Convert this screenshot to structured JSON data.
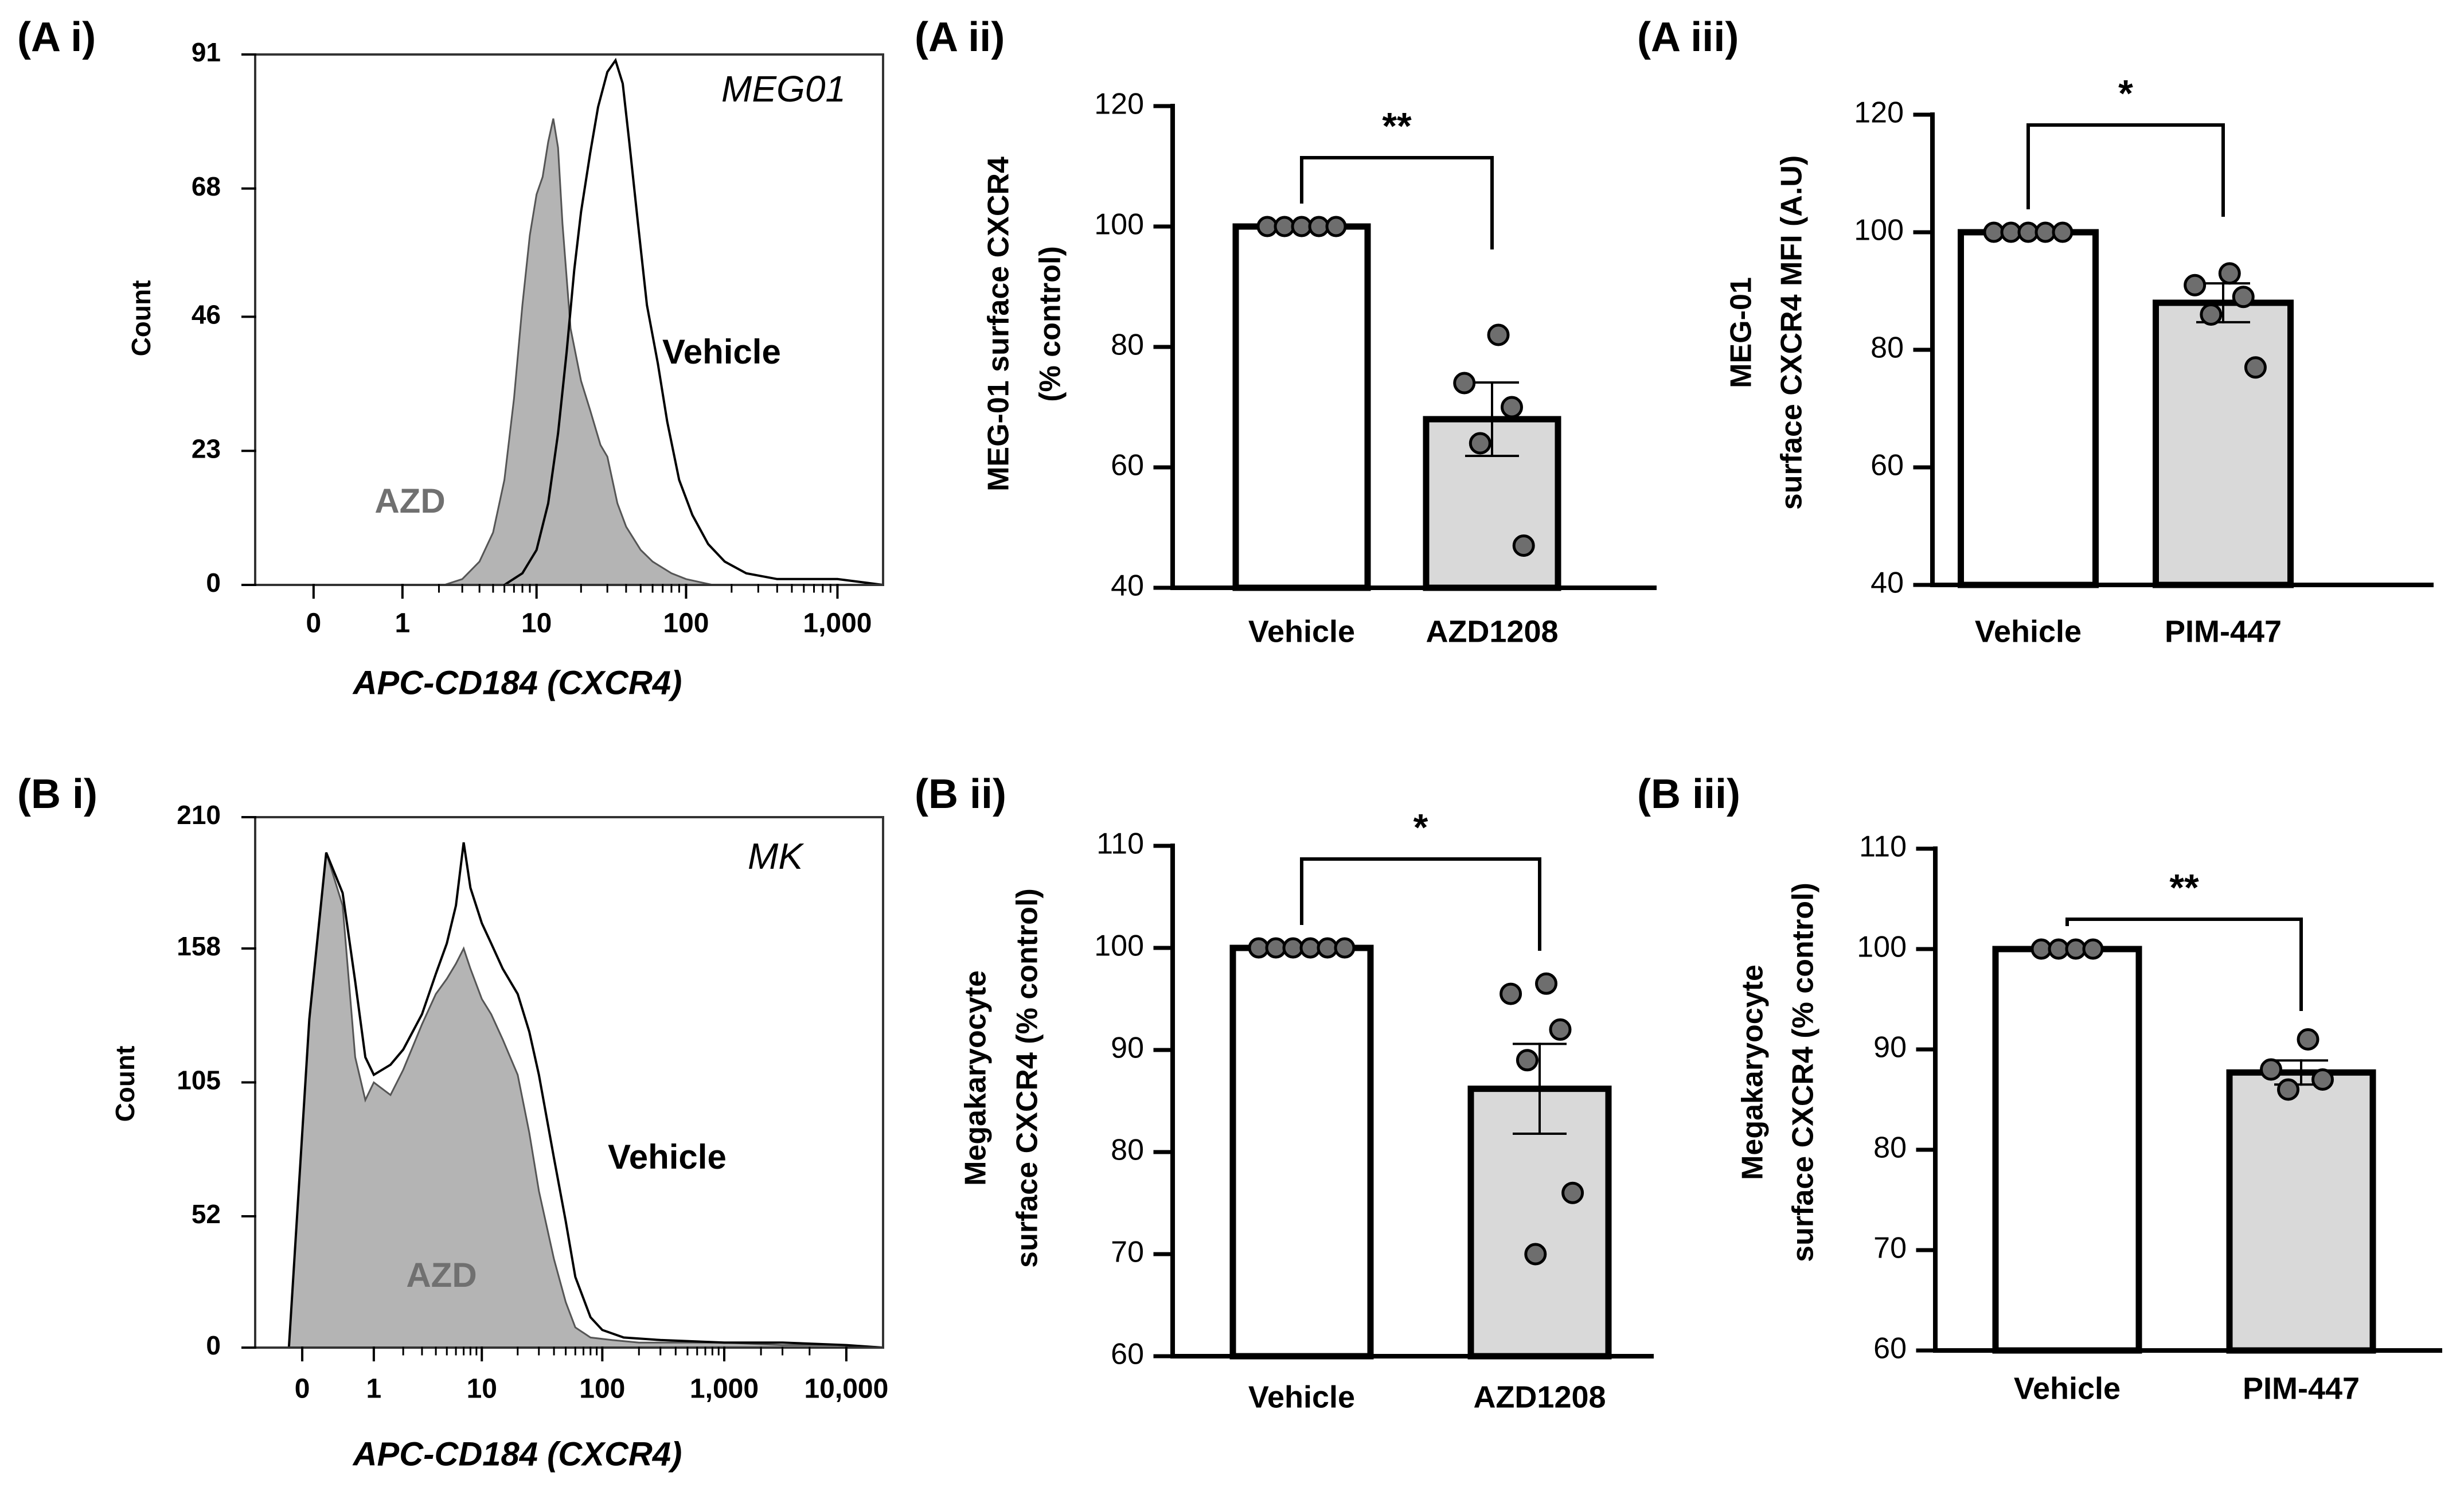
{
  "colors": {
    "ink": "#000000",
    "gray_fill": "#b4b4b4",
    "bar_gray": "#d9d9d9",
    "dot": "#6e6e6e",
    "azd_label": "#707070"
  },
  "chart_data": [
    {
      "id": "Ai",
      "panel_label": "(A i)",
      "type": "area",
      "subtype": "flow-histogram",
      "title": "MEG01",
      "xlabel": "APC-CD184  (CXCR4)",
      "ylabel": "Count",
      "ylim": [
        0,
        91
      ],
      "yticks": [
        {
          "v": 0,
          "label": "0"
        },
        {
          "v": 23,
          "label": "23"
        },
        {
          "v": 46,
          "label": "46"
        },
        {
          "v": 68,
          "label": "68"
        },
        {
          "v": 91,
          "label": "91"
        }
      ],
      "xticks": [
        {
          "v": 0,
          "label": "0"
        },
        {
          "v": 1,
          "label": "1"
        },
        {
          "v": 10,
          "label": "10"
        },
        {
          "v": 100,
          "label": "100"
        },
        {
          "v": 1000,
          "label": "1,000"
        }
      ],
      "xrange": [
        -0.5,
        2000
      ],
      "series": [
        {
          "name": "AZD",
          "label": "AZD",
          "style": "filled",
          "points": [
            [
              2.2,
              0
            ],
            [
              3,
              1
            ],
            [
              4,
              4
            ],
            [
              5,
              9
            ],
            [
              6,
              18
            ],
            [
              7,
              32
            ],
            [
              8,
              48
            ],
            [
              9,
              60
            ],
            [
              10,
              67
            ],
            [
              11,
              70
            ],
            [
              12,
              76
            ],
            [
              13,
              80
            ],
            [
              14,
              75
            ],
            [
              15,
              62
            ],
            [
              17,
              44
            ],
            [
              20,
              35
            ],
            [
              23,
              30
            ],
            [
              27,
              24
            ],
            [
              30,
              22
            ],
            [
              35,
              14
            ],
            [
              40,
              10
            ],
            [
              50,
              6
            ],
            [
              60,
              4
            ],
            [
              80,
              2
            ],
            [
              100,
              1
            ],
            [
              150,
              0
            ],
            [
              2000,
              0
            ]
          ]
        },
        {
          "name": "Vehicle",
          "label": "Vehicle",
          "style": "outline",
          "points": [
            [
              6,
              0
            ],
            [
              8,
              2
            ],
            [
              10,
              6
            ],
            [
              12,
              14
            ],
            [
              14,
              26
            ],
            [
              16,
              40
            ],
            [
              18,
              54
            ],
            [
              20,
              64
            ],
            [
              23,
              74
            ],
            [
              26,
              82
            ],
            [
              30,
              88
            ],
            [
              34,
              90
            ],
            [
              38,
              86
            ],
            [
              42,
              76
            ],
            [
              48,
              62
            ],
            [
              55,
              48
            ],
            [
              65,
              38
            ],
            [
              75,
              28
            ],
            [
              90,
              18
            ],
            [
              110,
              12
            ],
            [
              140,
              7
            ],
            [
              180,
              4
            ],
            [
              250,
              2
            ],
            [
              400,
              1
            ],
            [
              700,
              1
            ],
            [
              1000,
              1
            ],
            [
              2000,
              0
            ]
          ]
        }
      ]
    },
    {
      "id": "Aii",
      "panel_label": "(A ii)",
      "type": "bar",
      "ylabel_lines": [
        "MEG-01 surface CXCR4",
        "(% control)"
      ],
      "ylim": [
        40,
        120
      ],
      "yticks": [
        40,
        60,
        80,
        100,
        120
      ],
      "categories": [
        "Vehicle",
        "AZD1208"
      ],
      "values": [
        100,
        68
      ],
      "sem": [
        0,
        6.1
      ],
      "points": [
        [
          100,
          100,
          100,
          100,
          100
        ],
        [
          82,
          74,
          70,
          64,
          47
        ]
      ],
      "significance": "**"
    },
    {
      "id": "Aiii",
      "panel_label": "(A iii)",
      "type": "bar",
      "ylabel_lines": [
        "MEG-01",
        "surface CXCR4 MFI (A.U)"
      ],
      "ylim": [
        40,
        120
      ],
      "yticks": [
        40,
        60,
        80,
        100,
        120
      ],
      "categories": [
        "Vehicle",
        "PIM-447"
      ],
      "values": [
        100,
        88
      ],
      "sem": [
        0,
        3.3
      ],
      "points": [
        [
          100,
          100,
          100,
          100,
          100
        ],
        [
          93,
          91,
          89,
          86,
          77
        ]
      ],
      "significance": "*"
    },
    {
      "id": "Bi",
      "panel_label": "(B i)",
      "type": "area",
      "subtype": "flow-histogram",
      "title": "MK",
      "xlabel": "APC-CD184  (CXCR4)",
      "ylabel": "Count",
      "ylim": [
        0,
        210
      ],
      "yticks": [
        {
          "v": 0,
          "label": "0"
        },
        {
          "v": 52,
          "label": "52"
        },
        {
          "v": 105,
          "label": "105"
        },
        {
          "v": 158,
          "label": "158"
        },
        {
          "v": 210,
          "label": "210"
        }
      ],
      "xticks": [
        {
          "v": 0,
          "label": "0"
        },
        {
          "v": 1,
          "label": "1"
        },
        {
          "v": 10,
          "label": "10"
        },
        {
          "v": 100,
          "label": "100"
        },
        {
          "v": 1000,
          "label": "1,000"
        },
        {
          "v": 10000,
          "label": "10,000"
        }
      ],
      "xrange": [
        -0.5,
        20000
      ],
      "series": [
        {
          "name": "AZD",
          "label": "AZD",
          "style": "filled",
          "points": [
            [
              -0.1,
              0
            ],
            [
              0.05,
              130
            ],
            [
              0.2,
              196
            ],
            [
              0.4,
              175
            ],
            [
              0.6,
              115
            ],
            [
              0.8,
              98
            ],
            [
              1,
              105
            ],
            [
              1.5,
              100
            ],
            [
              2,
              110
            ],
            [
              3,
              128
            ],
            [
              4,
              140
            ],
            [
              5,
              146
            ],
            [
              6,
              152
            ],
            [
              7,
              158
            ],
            [
              8,
              150
            ],
            [
              10,
              138
            ],
            [
              12,
              132
            ],
            [
              15,
              122
            ],
            [
              20,
              108
            ],
            [
              25,
              85
            ],
            [
              30,
              62
            ],
            [
              40,
              35
            ],
            [
              50,
              18
            ],
            [
              60,
              8
            ],
            [
              80,
              4
            ],
            [
              120,
              3
            ],
            [
              200,
              2
            ],
            [
              400,
              2
            ],
            [
              1000,
              2
            ],
            [
              3000,
              1
            ],
            [
              10000,
              1
            ],
            [
              20000,
              0
            ]
          ]
        },
        {
          "name": "Vehicle",
          "label": "Vehicle",
          "style": "outline",
          "points": [
            [
              -0.1,
              0
            ],
            [
              0.05,
              130
            ],
            [
              0.2,
              196
            ],
            [
              0.4,
              180
            ],
            [
              0.6,
              145
            ],
            [
              0.8,
              115
            ],
            [
              1,
              108
            ],
            [
              1.5,
              112
            ],
            [
              2,
              118
            ],
            [
              3,
              132
            ],
            [
              4,
              148
            ],
            [
              5,
              160
            ],
            [
              6,
              175
            ],
            [
              7,
              200
            ],
            [
              8,
              182
            ],
            [
              10,
              168
            ],
            [
              12,
              160
            ],
            [
              15,
              150
            ],
            [
              20,
              140
            ],
            [
              25,
              125
            ],
            [
              30,
              108
            ],
            [
              40,
              75
            ],
            [
              50,
              50
            ],
            [
              60,
              28
            ],
            [
              80,
              12
            ],
            [
              100,
              7
            ],
            [
              150,
              4
            ],
            [
              300,
              3
            ],
            [
              1000,
              2
            ],
            [
              3000,
              2
            ],
            [
              10000,
              1
            ],
            [
              20000,
              0
            ]
          ]
        }
      ]
    },
    {
      "id": "Bii",
      "panel_label": "(B ii)",
      "type": "bar",
      "ylabel_lines": [
        "Megakaryocyte",
        "surface CXCR4 (% control)"
      ],
      "ylim": [
        60,
        110
      ],
      "yticks": [
        60,
        70,
        80,
        90,
        100,
        110
      ],
      "categories": [
        "Vehicle",
        "AZD1208"
      ],
      "values": [
        100,
        86.2
      ],
      "sem": [
        0,
        4.4
      ],
      "points": [
        [
          100,
          100,
          100,
          100,
          100,
          100
        ],
        [
          96.5,
          95.5,
          92,
          89,
          76,
          70
        ]
      ],
      "significance": "*"
    },
    {
      "id": "Biii",
      "panel_label": "(B iii)",
      "type": "bar",
      "ylabel_lines": [
        "Megakaryocyte",
        "surface CXCR4 (% control)"
      ],
      "ylim": [
        60,
        110
      ],
      "yticks": [
        60,
        70,
        80,
        90,
        100,
        110
      ],
      "categories": [
        "Vehicle",
        "PIM-447"
      ],
      "values": [
        100,
        87.7
      ],
      "sem": [
        0,
        1.2
      ],
      "points": [
        [
          100,
          100,
          100,
          100
        ],
        [
          91,
          88,
          87,
          86
        ]
      ],
      "significance": "**"
    }
  ]
}
